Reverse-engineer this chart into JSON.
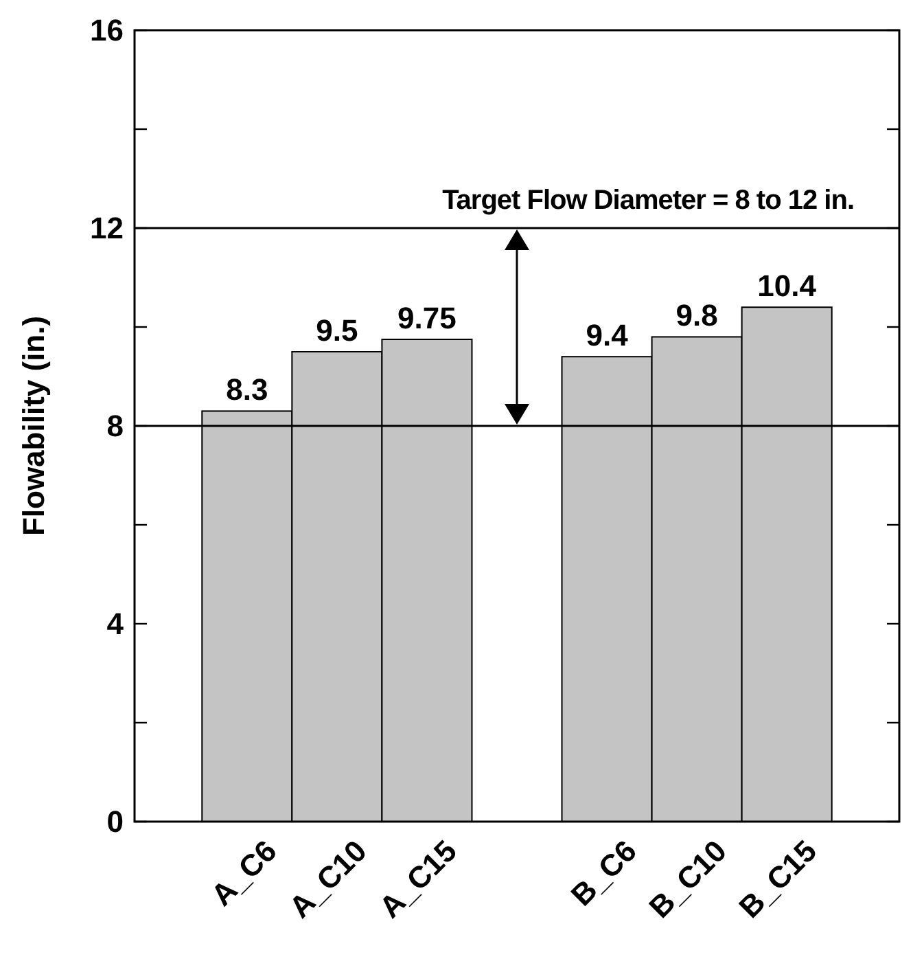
{
  "chart_data": {
    "type": "bar",
    "ylabel": "Flowability (in.)",
    "categories": [
      "A_C6",
      "A_C10",
      "A_C15",
      null,
      "B_C6",
      "B_C10",
      "B_C15"
    ],
    "values": [
      8.3,
      9.5,
      9.75,
      null,
      9.4,
      9.8,
      10.4
    ],
    "value_labels": [
      "8.3",
      "9.5",
      "9.75",
      null,
      "9.4",
      "9.8",
      "10.4"
    ],
    "color": "#c4c4c4",
    "ylim": [
      0,
      16
    ],
    "yticks": [
      0,
      {
        "value": 2,
        "label": null
      },
      4,
      {
        "value": 6,
        "label": null
      },
      8,
      {
        "value": 10,
        "label": null
      },
      12,
      {
        "value": 14,
        "label": null
      },
      16
    ],
    "ref_lines": [
      {
        "axis": "y",
        "value": 8
      },
      {
        "axis": "y",
        "value": 12
      }
    ],
    "annotations": [
      "Target Flow Diameter = 8 to 12 in."
    ],
    "grid": false
  }
}
